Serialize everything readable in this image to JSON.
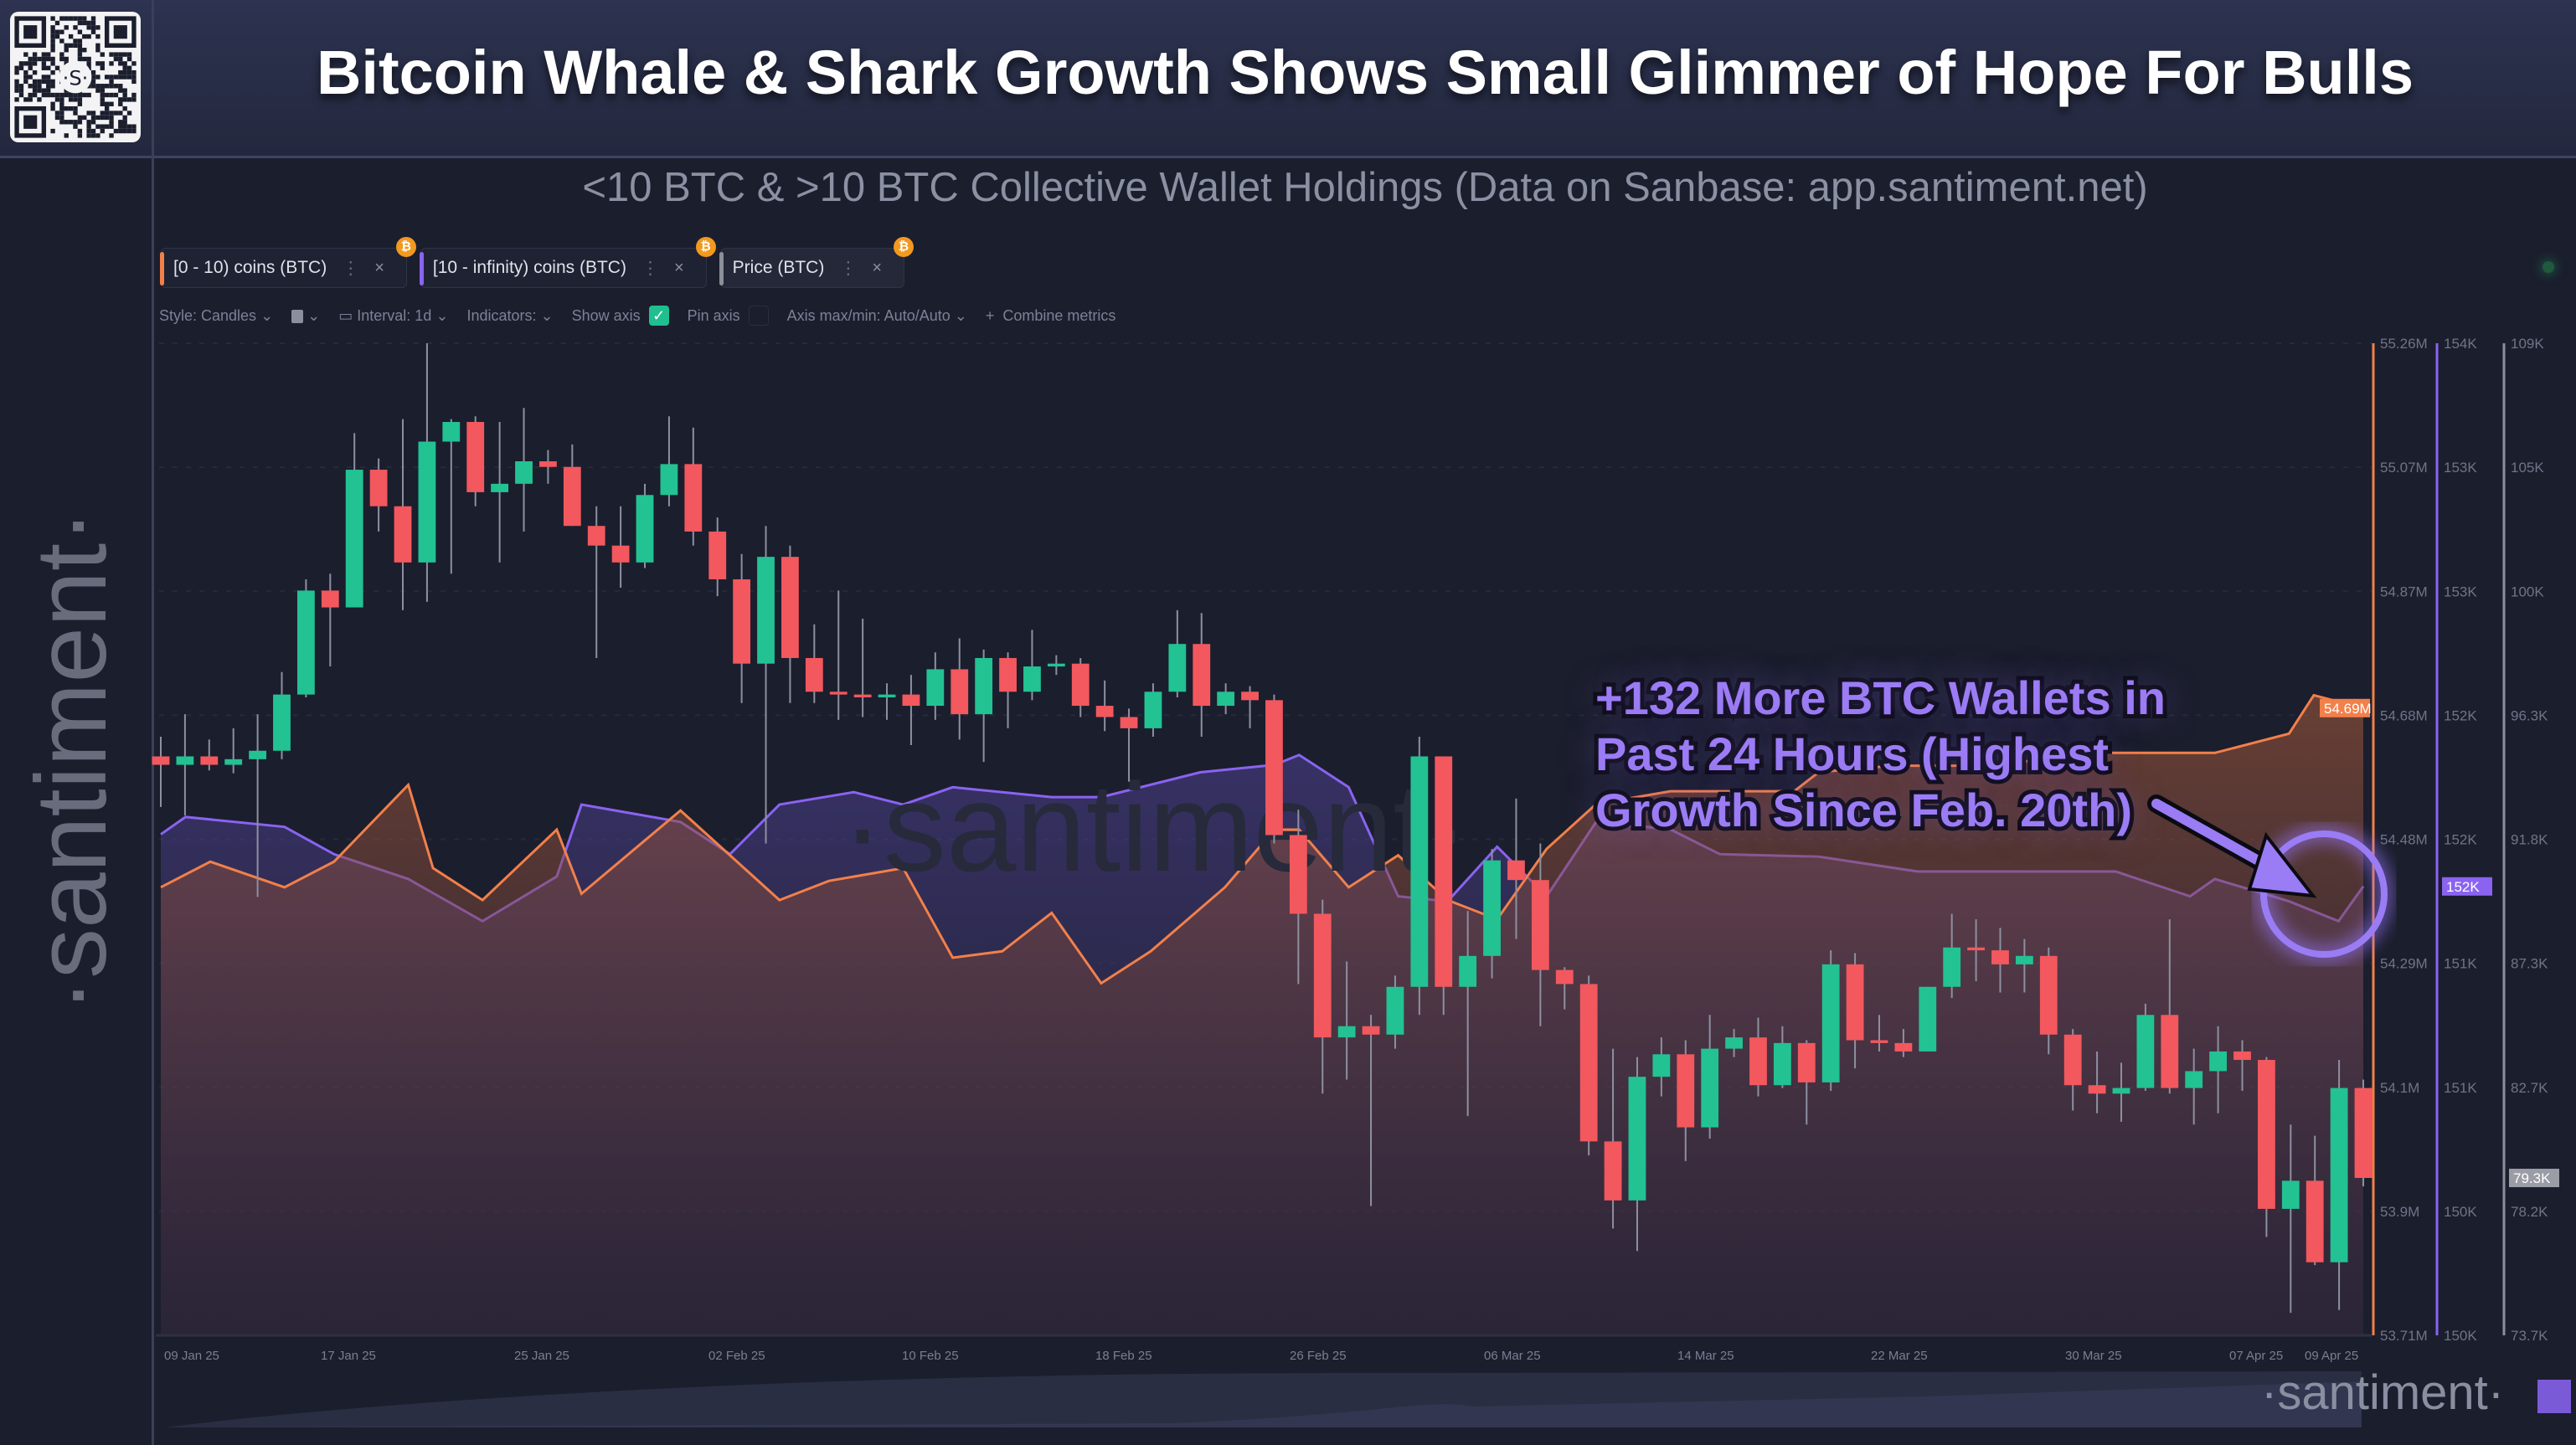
{
  "header": {
    "title": "Bitcoin Whale & Shark Growth Shows Small Glimmer of Hope For Bulls",
    "qr_logo": "S"
  },
  "subtitle": "<10 BTC & >10 BTC Collective Wallet Holdings (Data on Sanbase: app.santiment.net)",
  "tabs": [
    {
      "label": "[0 - 10) coins (BTC)",
      "color": "#f2804a",
      "badge": "₿"
    },
    {
      "label": "[10 - infinity) coins (BTC)",
      "color": "#8a63f0",
      "badge": "₿"
    },
    {
      "label": "Price (BTC)",
      "color": "#8d8f99",
      "badge": "₿"
    }
  ],
  "toolbar": {
    "style": "Style: Candles",
    "interval": "Interval: 1d",
    "indicators": "Indicators:",
    "show_axis": "Show axis",
    "show_axis_checked": true,
    "pin_axis": "Pin axis",
    "pin_axis_checked": false,
    "axis_maxmin": "Axis max/min: Auto/Auto",
    "combine": "Combine metrics"
  },
  "watermark": "·santiment·",
  "logo": "·santiment·",
  "annotation": "+132 More BTC Wallets in Past 24 Hours (Highest Growth Since Feb. 20th)",
  "annotation_lines": [
    "+132 More BTC Wallets in",
    "Past 24 Hours (Highest",
    "Growth Since Feb. 20th)"
  ],
  "colors": {
    "up": "#22c293",
    "down": "#f2585d",
    "small": "#f2804a",
    "large": "#8a63f0",
    "price_axis": "#8d8f99",
    "bg": "#1b1e2d"
  },
  "chart_data": {
    "type": "candlestick+line",
    "x_tick_labels": [
      "09 Jan 25",
      "17 Jan 25",
      "25 Jan 25",
      "02 Feb 25",
      "10 Feb 25",
      "18 Feb 25",
      "26 Feb 25",
      "06 Mar 25",
      "14 Mar 25",
      "22 Mar 25",
      "30 Mar 25",
      "07 Apr 25",
      "09 Apr 25"
    ],
    "axes": {
      "small": {
        "ticks": [
          "55.26M",
          "55.07M",
          "54.87M",
          "54.68M",
          "54.48M",
          "54.29M",
          "54.1M",
          "53.9M",
          "53.71M"
        ],
        "range": [
          53.71,
          55.26
        ],
        "current": "54.69M"
      },
      "large": {
        "ticks": [
          "154K",
          "153K",
          "153K",
          "152K",
          "152K",
          "151K",
          "151K",
          "150K",
          "150K"
        ],
        "range": [
          150,
          154
        ],
        "current": "152K"
      },
      "price": {
        "ticks": [
          "109K",
          "105K",
          "100K",
          "96.3K",
          "91.8K",
          "87.3K",
          "82.7K",
          "78.2K",
          "73.7K"
        ],
        "range": [
          73.7,
          109
        ],
        "current": "79.3K"
      }
    },
    "price_candles_ohlc_k": [
      [
        94.3,
        95.0,
        92.5,
        94.0
      ],
      [
        94.0,
        95.8,
        92.2,
        94.3
      ],
      [
        94.3,
        94.9,
        93.8,
        94.0
      ],
      [
        94.0,
        95.3,
        93.7,
        94.2
      ],
      [
        94.2,
        95.8,
        89.3,
        94.5
      ],
      [
        94.5,
        97.3,
        94.2,
        96.5
      ],
      [
        96.5,
        100.6,
        96.4,
        100.2
      ],
      [
        100.2,
        100.8,
        97.5,
        99.6
      ],
      [
        99.6,
        105.8,
        99.6,
        104.5
      ],
      [
        104.5,
        104.9,
        102.3,
        103.2
      ],
      [
        103.2,
        106.3,
        99.5,
        101.2
      ],
      [
        101.2,
        109.0,
        99.8,
        105.5
      ],
      [
        105.5,
        106.3,
        100.8,
        106.2
      ],
      [
        106.2,
        106.4,
        103.2,
        103.7
      ],
      [
        103.7,
        106.2,
        101.2,
        104.0
      ],
      [
        104.0,
        106.7,
        102.3,
        104.8
      ],
      [
        104.8,
        105.2,
        104.0,
        104.6
      ],
      [
        104.6,
        105.4,
        102.5,
        102.5
      ],
      [
        102.5,
        103.2,
        97.8,
        101.8
      ],
      [
        101.8,
        103.2,
        100.3,
        101.2
      ],
      [
        101.2,
        104.0,
        101.0,
        103.6
      ],
      [
        103.6,
        106.4,
        103.2,
        104.7
      ],
      [
        104.7,
        106.0,
        101.8,
        102.3
      ],
      [
        102.3,
        102.8,
        100.0,
        100.6
      ],
      [
        100.6,
        101.5,
        96.2,
        97.6
      ],
      [
        97.6,
        102.5,
        91.2,
        101.4
      ],
      [
        101.4,
        101.8,
        96.2,
        97.8
      ],
      [
        97.8,
        99.0,
        96.2,
        96.6
      ],
      [
        96.6,
        100.2,
        95.6,
        96.5
      ],
      [
        96.5,
        99.2,
        95.7,
        96.4
      ],
      [
        96.4,
        96.9,
        95.6,
        96.5
      ],
      [
        96.5,
        97.2,
        94.7,
        96.1
      ],
      [
        96.1,
        98.0,
        95.6,
        97.4
      ],
      [
        97.4,
        98.5,
        94.9,
        95.8
      ],
      [
        95.8,
        98.1,
        94.1,
        97.8
      ],
      [
        97.8,
        98.0,
        95.3,
        96.6
      ],
      [
        96.6,
        98.8,
        96.3,
        97.5
      ],
      [
        97.5,
        97.9,
        97.2,
        97.6
      ],
      [
        97.6,
        97.8,
        95.7,
        96.1
      ],
      [
        96.1,
        97.0,
        95.2,
        95.7
      ],
      [
        95.7,
        96.0,
        93.4,
        95.3
      ],
      [
        95.3,
        96.9,
        95.0,
        96.6
      ],
      [
        96.6,
        99.5,
        96.4,
        98.3
      ],
      [
        98.3,
        99.4,
        95.0,
        96.1
      ],
      [
        96.1,
        96.9,
        95.8,
        96.6
      ],
      [
        96.6,
        96.8,
        95.3,
        96.3
      ],
      [
        96.3,
        96.5,
        91.2,
        91.5
      ],
      [
        91.5,
        92.4,
        86.2,
        88.7
      ],
      [
        88.7,
        89.2,
        82.3,
        84.3
      ],
      [
        84.3,
        87.0,
        82.8,
        84.7
      ],
      [
        84.7,
        85.1,
        78.3,
        84.4
      ],
      [
        84.4,
        86.5,
        83.9,
        86.1
      ],
      [
        86.1,
        95.0,
        85.1,
        94.3
      ],
      [
        94.3,
        94.3,
        85.1,
        86.1
      ],
      [
        86.1,
        88.8,
        81.5,
        87.2
      ],
      [
        87.2,
        91.0,
        86.4,
        90.6
      ],
      [
        90.6,
        92.8,
        87.8,
        89.9
      ],
      [
        89.9,
        91.2,
        84.7,
        86.7
      ],
      [
        86.7,
        86.8,
        85.3,
        86.2
      ],
      [
        86.2,
        86.5,
        80.1,
        80.6
      ],
      [
        80.6,
        83.9,
        77.5,
        78.5
      ],
      [
        78.5,
        83.6,
        76.7,
        82.9
      ],
      [
        82.9,
        84.3,
        82.2,
        83.7
      ],
      [
        83.7,
        84.2,
        79.9,
        81.1
      ],
      [
        81.1,
        85.1,
        80.7,
        83.9
      ],
      [
        83.9,
        84.6,
        83.6,
        84.3
      ],
      [
        84.3,
        85.0,
        82.2,
        82.6
      ],
      [
        82.6,
        84.7,
        82.5,
        84.1
      ],
      [
        84.1,
        84.2,
        81.2,
        82.7
      ],
      [
        82.7,
        87.4,
        82.4,
        86.9
      ],
      [
        86.9,
        87.3,
        83.2,
        84.2
      ],
      [
        84.2,
        85.1,
        83.8,
        84.1
      ],
      [
        84.1,
        84.6,
        83.6,
        83.8
      ],
      [
        83.8,
        86.1,
        83.8,
        86.1
      ],
      [
        86.1,
        88.7,
        85.7,
        87.5
      ],
      [
        87.5,
        88.5,
        86.3,
        87.4
      ],
      [
        87.4,
        88.2,
        85.9,
        86.9
      ],
      [
        86.9,
        87.8,
        85.9,
        87.2
      ],
      [
        87.2,
        87.5,
        83.7,
        84.4
      ],
      [
        84.4,
        84.6,
        81.7,
        82.6
      ],
      [
        82.6,
        83.8,
        81.6,
        82.3
      ],
      [
        82.3,
        83.4,
        81.3,
        82.5
      ],
      [
        82.5,
        85.5,
        82.4,
        85.1
      ],
      [
        85.1,
        88.5,
        82.3,
        82.5
      ],
      [
        82.5,
        83.9,
        81.2,
        83.1
      ],
      [
        83.1,
        84.7,
        81.6,
        83.8
      ],
      [
        83.8,
        84.2,
        82.4,
        83.5
      ],
      [
        83.5,
        83.6,
        77.2,
        78.2
      ],
      [
        78.2,
        81.2,
        74.5,
        79.2
      ],
      [
        79.2,
        80.8,
        76.2,
        76.3
      ],
      [
        76.3,
        83.5,
        74.6,
        82.5
      ],
      [
        82.5,
        82.8,
        79.0,
        79.3
      ]
    ],
    "small_wallets_m": {
      "day": [
        0,
        2,
        5,
        7,
        10,
        11,
        13,
        16,
        17,
        21,
        23,
        25,
        27,
        30,
        32,
        34,
        36,
        38,
        40,
        43,
        45,
        46,
        48,
        50,
        52,
        54,
        56,
        58,
        61,
        63,
        66,
        67,
        70,
        74,
        78,
        81,
        83,
        86,
        87,
        89
      ],
      "value": [
        54.41,
        54.45,
        54.41,
        54.45,
        54.57,
        54.44,
        54.39,
        54.5,
        54.4,
        54.53,
        54.46,
        54.39,
        54.42,
        54.44,
        54.3,
        54.31,
        54.37,
        54.26,
        54.31,
        54.41,
        54.5,
        54.5,
        54.41,
        54.46,
        54.39,
        54.36,
        54.47,
        54.54,
        54.56,
        54.56,
        54.56,
        54.59,
        54.6,
        54.6,
        54.62,
        54.62,
        54.62,
        54.65,
        54.71,
        54.69
      ]
    },
    "large_wallets_k": {
      "day": [
        0,
        1,
        5,
        7,
        10,
        13,
        16,
        17,
        21,
        23,
        25,
        28,
        30,
        32,
        36,
        38,
        42,
        43,
        45,
        46,
        48,
        50,
        52,
        54,
        56,
        58,
        61,
        63,
        67,
        71,
        75,
        79,
        82,
        83,
        86,
        88,
        89
      ],
      "value": [
        152.02,
        152.09,
        152.05,
        151.94,
        151.84,
        151.67,
        151.85,
        152.14,
        152.07,
        151.94,
        152.14,
        152.19,
        152.14,
        152.21,
        152.17,
        152.17,
        152.27,
        152.28,
        152.3,
        152.34,
        152.21,
        151.77,
        151.75,
        151.97,
        151.77,
        152.07,
        152.04,
        151.94,
        151.93,
        151.87,
        151.87,
        151.87,
        151.77,
        151.84,
        151.75,
        151.67,
        151.81
      ]
    }
  }
}
